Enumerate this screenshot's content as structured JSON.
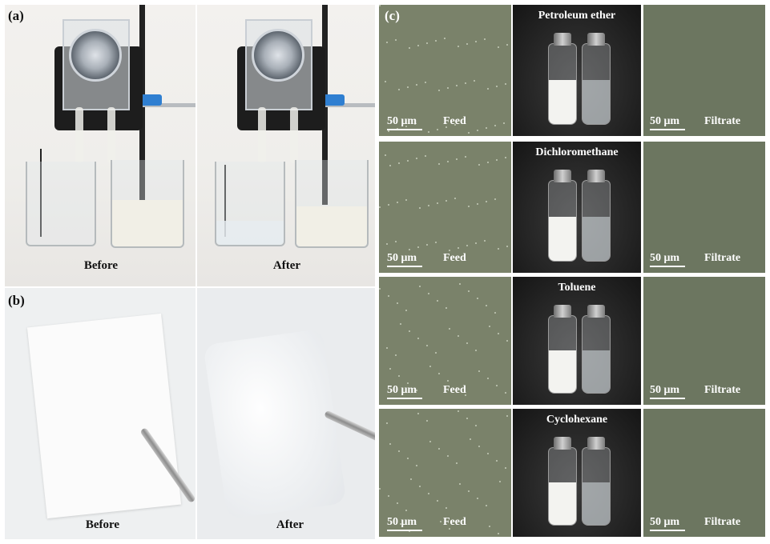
{
  "panels": {
    "a_label": "(a)",
    "b_label": "(b)",
    "c_label": "(c)"
  },
  "row_a": {
    "before": "Before",
    "after": "After"
  },
  "row_b": {
    "before": "Before",
    "after": "After"
  },
  "panel_c": {
    "rows": [
      {
        "solvent": "Petroleum ether",
        "scale": "50 μm",
        "left_label": "Feed",
        "right_label": "Filtrate"
      },
      {
        "solvent": "Dichloromethane",
        "scale": "50 μm",
        "left_label": "Feed",
        "right_label": "Filtrate"
      },
      {
        "solvent": "Toluene",
        "scale": "50 μm",
        "left_label": "Feed",
        "right_label": "Filtrate"
      },
      {
        "solvent": "Cyclohexane",
        "scale": "50 μm",
        "left_label": "Feed",
        "right_label": "Filtrate"
      }
    ]
  },
  "colors": {
    "micrograph": "#7a826a",
    "clamp_blue": "#2f7fd1",
    "vial_background": "#222222"
  }
}
